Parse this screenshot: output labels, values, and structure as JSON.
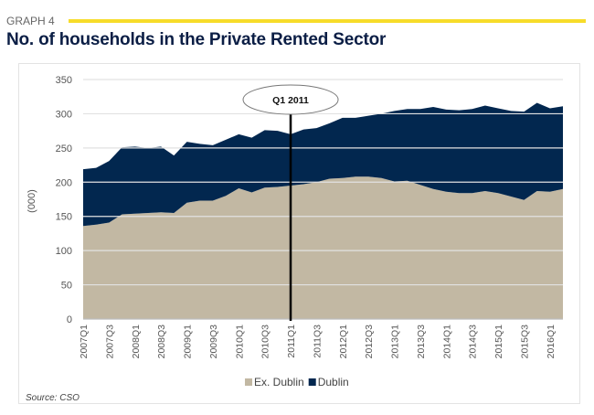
{
  "header": {
    "graph_label": "GRAPH 4",
    "title": "No. of households in the Private Rented Sector"
  },
  "source": "Source: CSO",
  "chart_data": {
    "type": "area",
    "stacked": true,
    "title": "No. of households in the Private Rented Sector",
    "ylabel": "(000)",
    "xlabel": "",
    "ylim": [
      0,
      350
    ],
    "yticks": [
      0,
      50,
      100,
      150,
      200,
      250,
      300,
      350
    ],
    "grid": true,
    "legend": "bottom",
    "annotation": {
      "label": "Q1 2011",
      "x": "2011Q1"
    },
    "categories": [
      "2007Q1",
      "2007Q2",
      "2007Q3",
      "2007Q4",
      "2008Q1",
      "2008Q2",
      "2008Q3",
      "2008Q4",
      "2009Q1",
      "2009Q2",
      "2009Q3",
      "2009Q4",
      "2010Q1",
      "2010Q2",
      "2010Q3",
      "2010Q4",
      "2011Q1",
      "2011Q2",
      "2011Q3",
      "2011Q4",
      "2012Q1",
      "2012Q2",
      "2012Q3",
      "2012Q4",
      "2013Q1",
      "2013Q2",
      "2013Q3",
      "2013Q4",
      "2014Q1",
      "2014Q2",
      "2014Q3",
      "2014Q4",
      "2015Q1",
      "2015Q2",
      "2015Q3",
      "2015Q4",
      "2016Q1",
      "2016Q2"
    ],
    "tick_labels": [
      "2007Q1",
      "2007Q3",
      "2008Q1",
      "2008Q3",
      "2009Q1",
      "2009Q3",
      "2010Q1",
      "2010Q3",
      "2011Q1",
      "2011Q3",
      "2012Q1",
      "2012Q3",
      "2013Q1",
      "2013Q3",
      "2014Q1",
      "2014Q3",
      "2015Q1",
      "2015Q3",
      "2016Q1"
    ],
    "series": [
      {
        "name": "Ex. Dublin",
        "color": "#c2b8a3",
        "values": [
          136,
          138,
          141,
          153,
          154,
          155,
          156,
          155,
          170,
          173,
          173,
          180,
          191,
          185,
          192,
          193,
          195,
          197,
          200,
          205,
          206,
          208,
          208,
          206,
          201,
          202,
          196,
          190,
          186,
          184,
          184,
          187,
          184,
          179,
          174,
          187,
          186,
          190
        ]
      },
      {
        "name": "Dublin",
        "color": "#02274f",
        "values": [
          83,
          83,
          90,
          98,
          98,
          95,
          96,
          84,
          89,
          83,
          81,
          82,
          79,
          80,
          84,
          82,
          75,
          80,
          79,
          81,
          88,
          86,
          89,
          94,
          103,
          105,
          111,
          120,
          120,
          121,
          123,
          125,
          124,
          125,
          129,
          129,
          122,
          121
        ]
      }
    ]
  }
}
